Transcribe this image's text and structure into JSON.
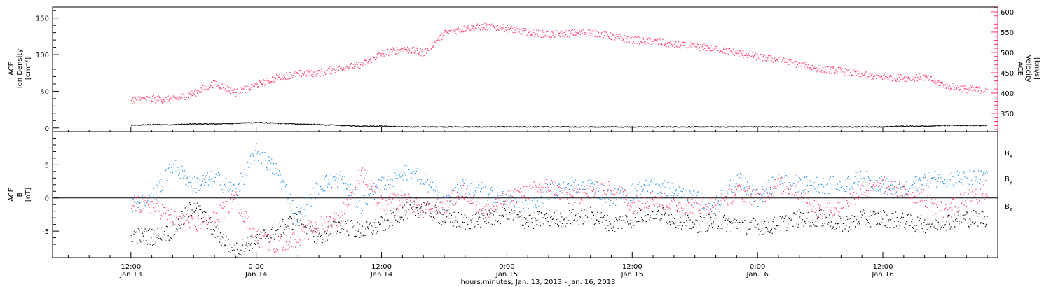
{
  "chart_data": [
    {
      "type": "line",
      "panel": "top",
      "ylabel_left": [
        "ACE",
        "Ion Density",
        "[cm⁻³]"
      ],
      "ylabel_right": [
        "ACE",
        "Velocity",
        "[km/s]"
      ],
      "left_yticks": [
        0,
        50,
        100,
        150
      ],
      "left_ylim": [
        -5,
        165
      ],
      "right_yticks": [
        350,
        400,
        450,
        500,
        550,
        600
      ],
      "right_ylim": [
        305,
        612
      ],
      "series": [
        {
          "axis": "left",
          "color": "#000000",
          "x": [
            0,
            2,
            4,
            6,
            8,
            10,
            12,
            14,
            16,
            18,
            20,
            22,
            24,
            26,
            28,
            30,
            32,
            34,
            36,
            38,
            40,
            42,
            44,
            46,
            48,
            50,
            52,
            54,
            56,
            58,
            60,
            62,
            64,
            66,
            68,
            70,
            72,
            74,
            76,
            78,
            80,
            82
          ],
          "y": [
            4,
            5,
            5,
            6,
            6,
            7,
            8,
            7,
            6,
            5,
            4,
            3,
            3,
            2,
            2,
            2,
            2,
            2,
            2,
            2,
            2,
            2,
            2,
            2,
            2,
            2,
            2,
            2,
            2,
            2,
            2,
            2,
            2,
            2,
            2,
            2,
            2,
            3,
            3,
            4,
            4,
            4
          ]
        },
        {
          "axis": "right",
          "color": "#ff3366",
          "x": [
            0,
            2,
            4,
            6,
            8,
            10,
            12,
            14,
            16,
            18,
            20,
            22,
            24,
            26,
            28,
            30,
            32,
            34,
            36,
            38,
            40,
            42,
            44,
            46,
            48,
            50,
            52,
            54,
            56,
            58,
            60,
            62,
            64,
            66,
            68,
            70,
            72,
            74,
            76,
            78,
            80,
            82
          ],
          "y": [
            385,
            386,
            385,
            400,
            425,
            402,
            420,
            440,
            448,
            450,
            462,
            470,
            498,
            510,
            500,
            548,
            560,
            565,
            560,
            550,
            545,
            548,
            550,
            540,
            532,
            528,
            520,
            515,
            510,
            500,
            490,
            482,
            470,
            460,
            455,
            445,
            440,
            438,
            440,
            420,
            410,
            408
          ]
        }
      ]
    },
    {
      "type": "line",
      "panel": "bottom",
      "ylabel": [
        "ACE",
        "B",
        "[nT]"
      ],
      "yticks": [
        -5,
        0,
        5
      ],
      "ylim": [
        -9,
        10
      ],
      "legend": [
        "Bx",
        "By",
        "Bz"
      ],
      "legend_placement": "right",
      "series": [
        {
          "name": "Bx",
          "color": "#000000",
          "x": [
            0,
            2,
            4,
            6,
            8,
            10,
            12,
            14,
            16,
            18,
            20,
            22,
            24,
            26,
            28,
            30,
            32,
            34,
            36,
            38,
            40,
            42,
            44,
            46,
            48,
            50,
            52,
            54,
            56,
            58,
            60,
            62,
            64,
            66,
            68,
            70,
            72,
            74,
            76,
            78,
            80,
            82
          ],
          "y": [
            -5.5,
            -5.8,
            -5,
            -1,
            -5,
            -8,
            -6,
            -5,
            -3,
            -6,
            -4,
            -5,
            -4,
            -2,
            -1.5,
            -3,
            -3.5,
            -3,
            -2.5,
            -3.5,
            -3,
            -3,
            -2.5,
            -4,
            -3,
            -2,
            -3,
            -4,
            -3.5,
            -4,
            -4.2,
            -4,
            -3,
            -3,
            -4,
            -3,
            -3,
            -3.5,
            -4,
            -3.5,
            -3,
            -3
          ]
        },
        {
          "name": "By",
          "color": "#1e88e5",
          "x": [
            0,
            2,
            4,
            6,
            8,
            10,
            12,
            14,
            16,
            18,
            20,
            22,
            24,
            26,
            28,
            30,
            32,
            34,
            36,
            38,
            40,
            42,
            44,
            46,
            48,
            50,
            52,
            54,
            56,
            58,
            60,
            62,
            64,
            66,
            68,
            70,
            72,
            74,
            76,
            78,
            80,
            82
          ],
          "y": [
            -1,
            0,
            5,
            2,
            3,
            1,
            7,
            4,
            -3,
            2,
            3,
            -1,
            2,
            4,
            3,
            -1,
            2,
            1,
            0,
            -1,
            1,
            2,
            2,
            0,
            1,
            2,
            1,
            0,
            -1,
            3,
            0,
            3,
            2,
            2,
            2,
            3,
            2,
            1,
            3,
            3,
            3,
            3
          ]
        },
        {
          "name": "Bz",
          "color": "#ff3366",
          "x": [
            0,
            2,
            4,
            6,
            8,
            10,
            12,
            14,
            16,
            18,
            20,
            22,
            24,
            26,
            28,
            30,
            32,
            34,
            36,
            38,
            40,
            42,
            44,
            46,
            48,
            50,
            52,
            54,
            56,
            58,
            60,
            62,
            64,
            66,
            68,
            70,
            72,
            74,
            76,
            78,
            80,
            82
          ],
          "y": [
            -1,
            -1,
            -3,
            -4,
            -3,
            0,
            -6,
            -7,
            -6,
            -4,
            -3,
            4,
            -1,
            0,
            -2,
            -1,
            1,
            -2,
            0,
            1,
            2,
            0,
            1,
            2,
            -1,
            0,
            -1,
            -1,
            -1,
            1,
            0,
            2,
            1,
            -2,
            -1,
            1,
            2,
            1,
            0,
            -2,
            0,
            1
          ]
        }
      ]
    }
  ],
  "x_axis": {
    "xlim": [
      -7.5,
      83
    ],
    "ticks": [
      {
        "h": 0,
        "time": "12:00",
        "date": "Jan.13"
      },
      {
        "h": 12,
        "time": "0:00",
        "date": "Jan.14"
      },
      {
        "h": 24,
        "time": "12:00",
        "date": "Jan.14"
      },
      {
        "h": 36,
        "time": "0:00",
        "date": "Jan.15"
      },
      {
        "h": 48,
        "time": "12:00",
        "date": "Jan.15"
      },
      {
        "h": 60,
        "time": "0:00",
        "date": "Jan.16"
      },
      {
        "h": 72,
        "time": "12:00",
        "date": "Jan.16"
      }
    ],
    "label": "hours:minutes, Jan. 13, 2013 - Jan. 16, 2013"
  },
  "colors": {
    "black": "#000000",
    "pink": "#ff3366",
    "blue": "#1e88e5"
  }
}
